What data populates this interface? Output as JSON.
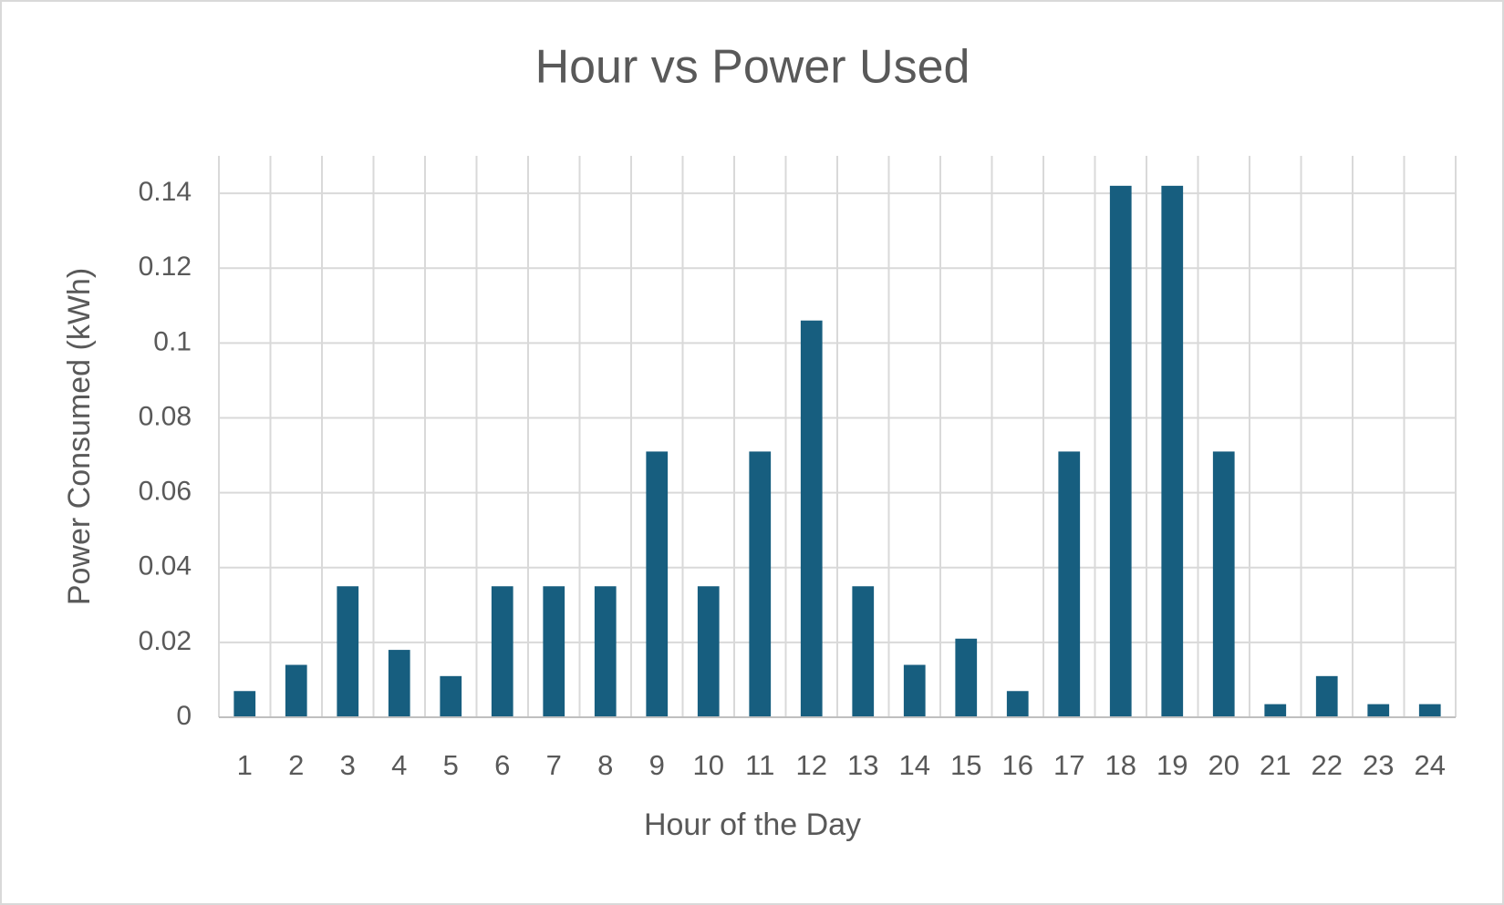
{
  "chart_data": {
    "type": "bar",
    "title": "Hour vs Power Used",
    "x_label": "Hour of the Day",
    "y_label": "Power Consumed (kWh)",
    "categories": [
      "1",
      "2",
      "3",
      "4",
      "5",
      "6",
      "7",
      "8",
      "9",
      "10",
      "11",
      "12",
      "13",
      "14",
      "15",
      "16",
      "17",
      "18",
      "19",
      "20",
      "21",
      "22",
      "23",
      "24"
    ],
    "values": [
      0.007,
      0.014,
      0.035,
      0.018,
      0.011,
      0.035,
      0.035,
      0.035,
      0.071,
      0.035,
      0.071,
      0.106,
      0.035,
      0.014,
      0.021,
      0.007,
      0.071,
      0.142,
      0.142,
      0.071,
      0.0035,
      0.011,
      0.0035,
      0.0035
    ],
    "color": "#175e7f",
    "ylim": [
      0,
      0.15
    ],
    "yticks": [
      0,
      0.02,
      0.04,
      0.06,
      0.08,
      0.1,
      0.12,
      0.14
    ],
    "grid": true
  }
}
